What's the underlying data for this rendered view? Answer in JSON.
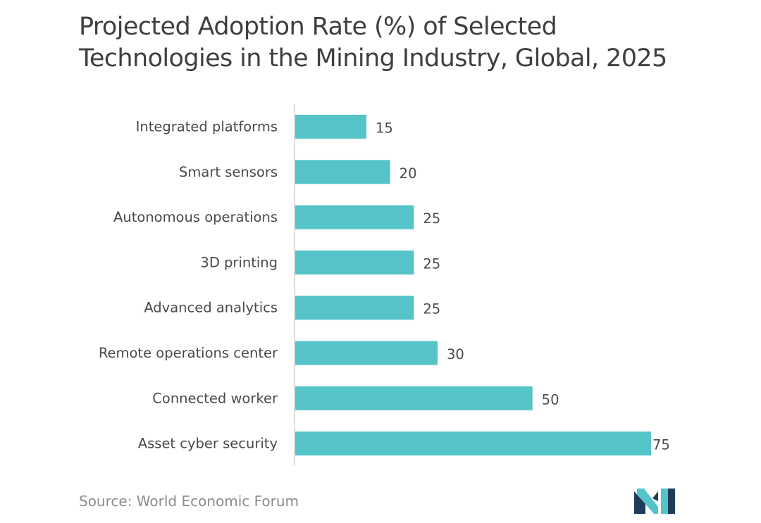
{
  "title": "Projected Adoption Rate (%) of Selected Technologies in the Mining Industry, Global, 2025",
  "source": "Source: World Economic Forum",
  "colors": {
    "bar": "#55c4c8",
    "label": "#4a4a4a",
    "axis": "#d0d0d0",
    "logo_dark": "#1f3d5a",
    "logo_light": "#55c4c8"
  },
  "logo": "mordor-intelligence-logo",
  "chart_data": {
    "type": "bar",
    "orientation": "horizontal",
    "categories": [
      "Integrated platforms",
      "Smart sensors",
      "Autonomous operations",
      "3D printing",
      "Advanced analytics",
      "Remote operations center",
      "Connected worker",
      "Asset cyber security"
    ],
    "values": [
      15,
      20,
      25,
      25,
      25,
      30,
      50,
      75
    ],
    "data_labels": [
      "15",
      "20",
      "25",
      "25",
      "25",
      "30",
      "50",
      "75"
    ],
    "xlim": [
      0,
      75
    ],
    "grid": false,
    "legend": "none"
  }
}
